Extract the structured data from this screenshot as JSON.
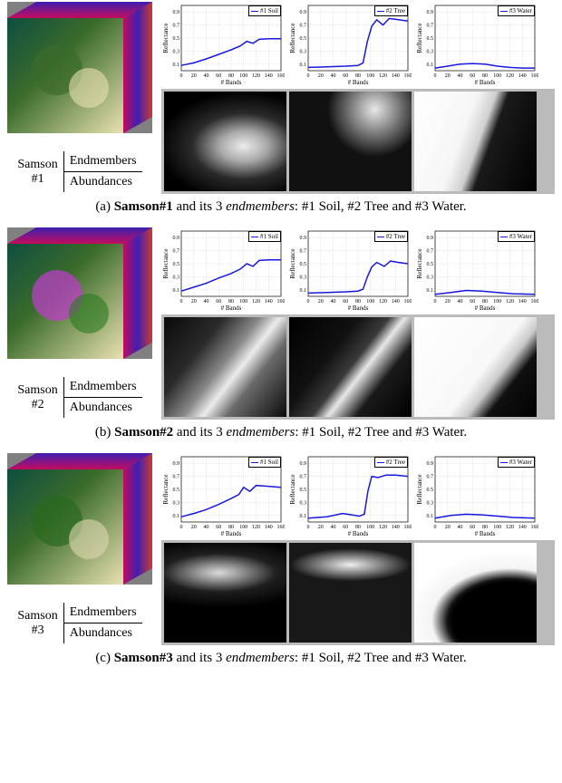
{
  "chart_style": {
    "line_color": "#1818e0",
    "line_width": 1.5,
    "grid_color": "#c8c8c8",
    "axis_color": "#000000",
    "xlim": [
      0,
      160
    ],
    "ylim": [
      0,
      1.0
    ],
    "yticks": [
      0.1,
      0.3,
      0.5,
      0.7,
      0.9
    ],
    "xticks": [
      0,
      20,
      40,
      60,
      80,
      100,
      120,
      140,
      160
    ],
    "xlabel": "# Bands",
    "ylabel": "Reflectance",
    "tick_fontsize": 6,
    "label_fontsize": 7
  },
  "panels": [
    {
      "id": "samson1",
      "name_lines": [
        "Samson",
        "#1"
      ],
      "row_labels": [
        "Endmembers",
        "Abundances"
      ],
      "caption_prefix": "(a)",
      "caption_bold": "Samson#1",
      "caption_mid": " and its 3 ",
      "caption_ital": "endmembers",
      "caption_tail": ": #1 Soil, #2 Tree and #3 Water.",
      "thumb_colors": [
        "#0e4e40",
        "#3a6b2b",
        "#e9e1b0",
        "#c30c5c",
        "#3d1fb2",
        "#cc3a2f"
      ],
      "charts": [
        {
          "legend": "#1 Soil",
          "series": [
            [
              0,
              0.08
            ],
            [
              20,
              0.12
            ],
            [
              40,
              0.18
            ],
            [
              60,
              0.25
            ],
            [
              80,
              0.32
            ],
            [
              95,
              0.38
            ],
            [
              105,
              0.45
            ],
            [
              115,
              0.42
            ],
            [
              125,
              0.48
            ],
            [
              140,
              0.49
            ],
            [
              160,
              0.49
            ]
          ]
        },
        {
          "legend": "#2 Tree",
          "series": [
            [
              0,
              0.05
            ],
            [
              30,
              0.06
            ],
            [
              60,
              0.07
            ],
            [
              80,
              0.08
            ],
            [
              88,
              0.12
            ],
            [
              95,
              0.45
            ],
            [
              102,
              0.68
            ],
            [
              110,
              0.78
            ],
            [
              120,
              0.7
            ],
            [
              130,
              0.8
            ],
            [
              145,
              0.78
            ],
            [
              160,
              0.76
            ]
          ]
        },
        {
          "legend": "#3 Water",
          "series": [
            [
              0,
              0.04
            ],
            [
              20,
              0.07
            ],
            [
              40,
              0.1
            ],
            [
              60,
              0.11
            ],
            [
              80,
              0.1
            ],
            [
              100,
              0.07
            ],
            [
              120,
              0.05
            ],
            [
              140,
              0.04
            ],
            [
              160,
              0.04
            ]
          ]
        }
      ],
      "abundances": [
        {
          "grad": "radial-gradient(ellipse 70% 55% at 65% 55%, #ededed 0%, #a8a8a8 28%, #2a2a2a 60%, #000 100%), linear-gradient(100deg,#000 0%,#181818 35%,#444 55%,#000 100%)"
        },
        {
          "grad": "radial-gradient(circle at 70% 18%, #e8e8e8 0%, #888 18%, #111 40%), radial-gradient(ellipse 80% 50% at 40% 70%, #cfcfcf 0%, #555 50%, #000 100%)"
        },
        {
          "grad": "linear-gradient(110deg,#fff 0%,#f6f6f6 40%,#d0d0d0 52%,#1a1a1a 60%,#000 100%)"
        }
      ]
    },
    {
      "id": "samson2",
      "name_lines": [
        "Samson",
        "#2"
      ],
      "row_labels": [
        "Endmembers",
        "Abundances"
      ],
      "caption_prefix": "(b)",
      "caption_bold": "Samson#2",
      "caption_mid": " and its 3 ",
      "caption_ital": "endmembers",
      "caption_tail": ": #1 Soil, #2 Tree and #3 Water.",
      "thumb_colors": [
        "#8a2f9e",
        "#c23bd0",
        "#2a7a1e",
        "#d0a8c8",
        "#3d1fb2",
        "#cc2a7a"
      ],
      "charts": [
        {
          "legend": "#1 Soil",
          "series": [
            [
              0,
              0.08
            ],
            [
              20,
              0.14
            ],
            [
              40,
              0.2
            ],
            [
              60,
              0.28
            ],
            [
              80,
              0.35
            ],
            [
              95,
              0.42
            ],
            [
              105,
              0.5
            ],
            [
              115,
              0.46
            ],
            [
              125,
              0.55
            ],
            [
              140,
              0.56
            ],
            [
              160,
              0.56
            ]
          ]
        },
        {
          "legend": "#2 Tree",
          "series": [
            [
              0,
              0.05
            ],
            [
              30,
              0.06
            ],
            [
              60,
              0.07
            ],
            [
              80,
              0.08
            ],
            [
              88,
              0.11
            ],
            [
              95,
              0.3
            ],
            [
              102,
              0.45
            ],
            [
              110,
              0.52
            ],
            [
              122,
              0.46
            ],
            [
              132,
              0.54
            ],
            [
              145,
              0.52
            ],
            [
              160,
              0.5
            ]
          ]
        },
        {
          "legend": "#3 Water",
          "series": [
            [
              0,
              0.03
            ],
            [
              25,
              0.06
            ],
            [
              50,
              0.09
            ],
            [
              75,
              0.08
            ],
            [
              100,
              0.06
            ],
            [
              125,
              0.04
            ],
            [
              160,
              0.03
            ]
          ]
        }
      ],
      "abundances": [
        {
          "grad": "linear-gradient(128deg,#0a0a0a 0%,#2a2a2a 30%,#888 48%,#ececec 58%,#6a6a6a 70%,#0a0a0a 100%)"
        },
        {
          "grad": "linear-gradient(128deg,#000 0%,#111 35%,#3a3a3a 50%,#e8e8e8 58%,#1a1a1a 72%,#000 100%)"
        },
        {
          "grad": "linear-gradient(128deg,#fff 0%,#f8f8f8 55%,#cacaca 65%,#101010 75%,#000 100%)"
        }
      ]
    },
    {
      "id": "samson3",
      "name_lines": [
        "Samson",
        "#3"
      ],
      "row_labels": [
        "Endmembers",
        "Abundances"
      ],
      "caption_prefix": "(c)",
      "caption_bold": "Samson#3",
      "caption_mid": " and its 3 ",
      "caption_ital": "endmembers",
      "caption_tail": ": #1 Soil, #2 Tree and #3 Water.",
      "thumb_colors": [
        "#0e4e40",
        "#2a6a20",
        "#e0d8b0",
        "#c31c4c",
        "#aa1cc3",
        "#3838e0"
      ],
      "charts": [
        {
          "legend": "#1 Soil",
          "series": [
            [
              0,
              0.08
            ],
            [
              20,
              0.13
            ],
            [
              40,
              0.19
            ],
            [
              60,
              0.27
            ],
            [
              80,
              0.36
            ],
            [
              92,
              0.42
            ],
            [
              100,
              0.53
            ],
            [
              110,
              0.47
            ],
            [
              120,
              0.56
            ],
            [
              135,
              0.55
            ],
            [
              160,
              0.53
            ]
          ]
        },
        {
          "legend": "#2 Tree",
          "series": [
            [
              0,
              0.06
            ],
            [
              30,
              0.08
            ],
            [
              55,
              0.13
            ],
            [
              70,
              0.11
            ],
            [
              82,
              0.09
            ],
            [
              90,
              0.12
            ],
            [
              96,
              0.48
            ],
            [
              102,
              0.7
            ],
            [
              112,
              0.68
            ],
            [
              125,
              0.72
            ],
            [
              140,
              0.72
            ],
            [
              160,
              0.7
            ]
          ]
        },
        {
          "legend": "#3 Water",
          "series": [
            [
              0,
              0.06
            ],
            [
              25,
              0.1
            ],
            [
              50,
              0.12
            ],
            [
              75,
              0.11
            ],
            [
              100,
              0.09
            ],
            [
              125,
              0.07
            ],
            [
              160,
              0.06
            ]
          ]
        }
      ],
      "abundances": [
        {
          "grad": "radial-gradient(ellipse 85% 35% at 45% 30%, #dcdcdc 0%, #888 25%, #1e1e1e 55%, #000 100%), radial-gradient(ellipse 55% 40% at 35% 70%, #cfcfcf 0%, #555 50%, #0a0a0a 100%)"
        },
        {
          "grad": "radial-gradient(ellipse 90% 30% at 50% 22%, #f0f0f0 0%, #9a9a9a 22%, #181818 55%), radial-gradient(ellipse 60% 45% at 30% 75%, #d0d0d0 0%, #555 45%, #000 100%)"
        },
        {
          "grad": "radial-gradient(ellipse 85% 70% at 78% 78%, #000 0%, #000 55%, #141414 60%, #f4f4f4 75%, #fff 100%)"
        }
      ]
    }
  ]
}
